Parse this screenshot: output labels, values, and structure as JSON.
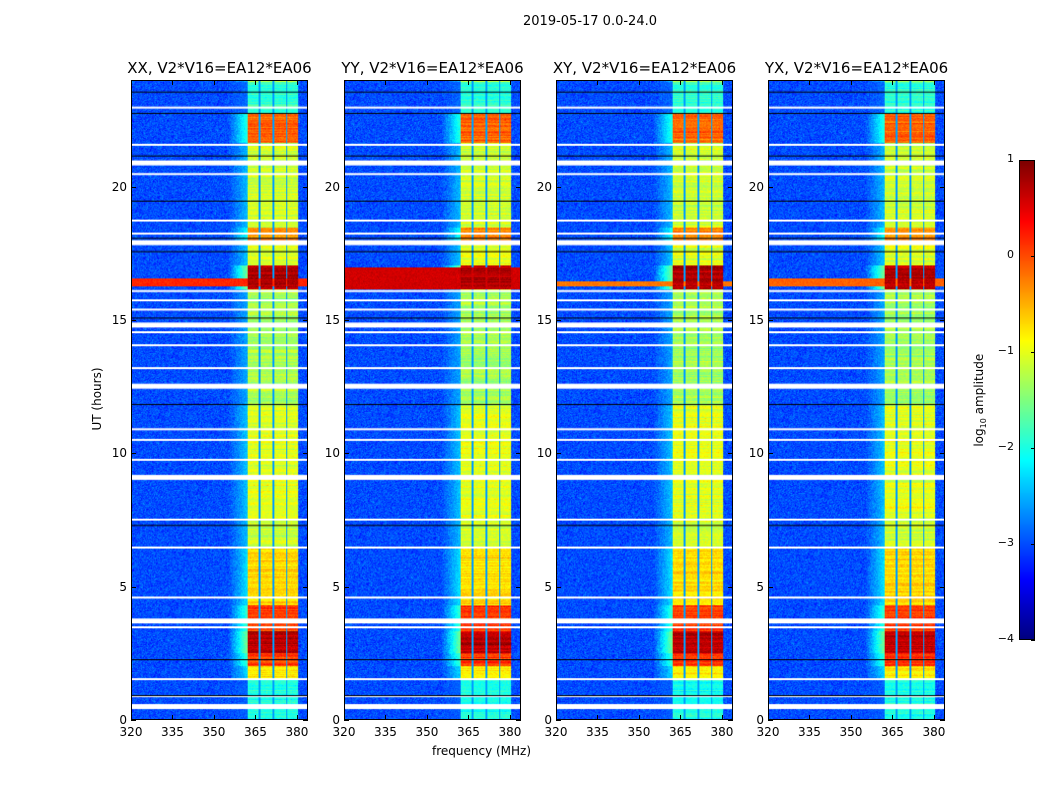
{
  "chart_data": {
    "type": "heatmap",
    "title": "2019-05-17 0.0-24.0",
    "xlabel": "frequency (MHz)",
    "ylabel": "UT (hours)",
    "xlim": [
      320,
      384
    ],
    "ylim": [
      0,
      24
    ],
    "xticks": [
      "320",
      "335",
      "350",
      "365",
      "380"
    ],
    "xtick_values": [
      320,
      335,
      350,
      365,
      380
    ],
    "yticks": [
      "0",
      "5",
      "10",
      "15",
      "20"
    ],
    "ytick_values": [
      0,
      5,
      10,
      15,
      20
    ],
    "colorbar": {
      "label_prefix": "log",
      "label_sub": "10",
      "label_suffix": " amplitude",
      "range": [
        -4,
        1
      ],
      "colormap": "jet",
      "ticks": [
        "1",
        "0",
        "−1",
        "−2",
        "−3",
        "−4"
      ],
      "tick_values": [
        1,
        0,
        -1,
        -2,
        -3,
        -4
      ]
    },
    "background_level": -3.0,
    "band": {
      "f_range": [
        362,
        380.5
      ],
      "sub_band_edges": [
        366.5,
        371.5,
        376.5
      ]
    },
    "band_features": [
      {
        "t": [
          0,
          1.5
        ],
        "level": -2.0
      },
      {
        "t": [
          1.5,
          2.0
        ],
        "level": -0.8
      },
      {
        "t": [
          2.0,
          4.3
        ],
        "level": 0.1
      },
      {
        "t": [
          2.5,
          3.3
        ],
        "level": 0.7
      },
      {
        "t": [
          4.3,
          6.5
        ],
        "level": -0.7
      },
      {
        "t": [
          6.5,
          7.5
        ],
        "level": -1.1
      },
      {
        "t": [
          7.5,
          11.8
        ],
        "level": -1.0
      },
      {
        "t": [
          11.8,
          16.2
        ],
        "level": -1.3
      },
      {
        "t": [
          16.2,
          17.1
        ],
        "level": 0.75
      },
      {
        "t": [
          17.1,
          18.0
        ],
        "level": -1.0
      },
      {
        "t": [
          18.0,
          18.5
        ],
        "level": -0.3
      },
      {
        "t": [
          18.5,
          21.6
        ],
        "level": -1.1
      },
      {
        "t": [
          21.7,
          22.8
        ],
        "level": -0.1
      },
      {
        "t": [
          22.8,
          24
        ],
        "level": -1.9
      }
    ],
    "flagged_rows_white": [
      0.45,
      0.86,
      1.5,
      3.45,
      3.67,
      4.57,
      6.45,
      7.5,
      9.07,
      9.75,
      10.5,
      10.9,
      12.5,
      13.2,
      14.06,
      14.55,
      14.8,
      15.4,
      15.75,
      16.1,
      17.9,
      18.26,
      18.75,
      20.5,
      20.9,
      21.6,
      23.0
    ],
    "flagged_rows_dark": [
      0.9,
      2.25,
      7.3,
      11.85,
      15.1,
      17.6,
      18.1,
      19.5,
      21.2,
      22.8,
      23.6
    ],
    "panels": [
      {
        "title": "XX, V2*V16=EA12*EA06",
        "wideband_event": {
          "t": [
            16.3,
            16.6
          ],
          "level": 0.2
        }
      },
      {
        "title": "YY, V2*V16=EA12*EA06",
        "wideband_event": {
          "t": [
            16.2,
            17.0
          ],
          "level": 0.6
        }
      },
      {
        "title": "XY, V2*V16=EA12*EA06",
        "wideband_event": {
          "t": [
            16.3,
            16.5
          ],
          "level": -0.2
        }
      },
      {
        "title": "YX, V2*V16=EA12*EA06",
        "wideband_event": {
          "t": [
            16.3,
            16.6
          ],
          "level": -0.1
        }
      }
    ]
  }
}
